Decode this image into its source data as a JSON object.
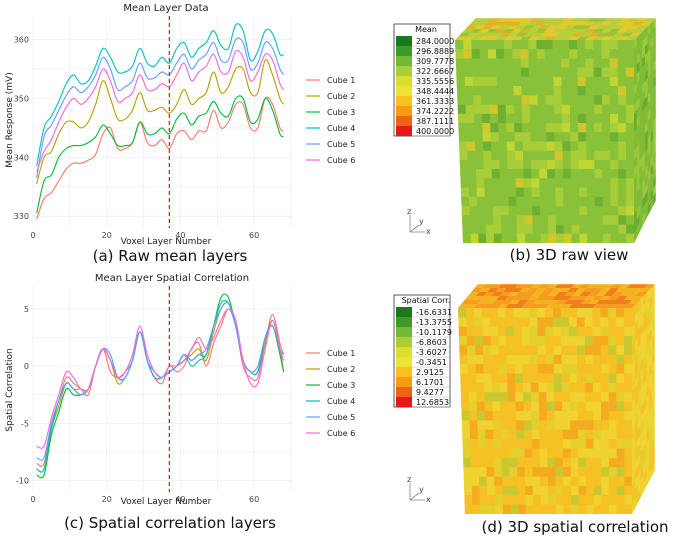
{
  "chart_data": [
    {
      "id": "raw",
      "type": "line",
      "title": "Mean Layer Data",
      "xlabel": "Voxel Layer Number",
      "ylabel": "Mean Response (mV)",
      "xlim": [
        0,
        70
      ],
      "ylim": [
        328,
        364
      ],
      "xticks": [
        "0",
        "20",
        "40",
        "60"
      ],
      "yticks": [
        "330",
        "340",
        "350",
        "360"
      ],
      "vline_x": 37,
      "caption": "(a) Raw mean layers",
      "x": [
        1,
        3,
        5,
        7,
        9,
        11,
        13,
        15,
        17,
        19,
        21,
        23,
        25,
        27,
        29,
        31,
        33,
        35,
        37,
        39,
        41,
        43,
        45,
        47,
        49,
        51,
        53,
        55,
        57,
        59,
        61,
        63,
        65,
        67,
        68
      ],
      "series": [
        {
          "name": "Cube 1",
          "color": "#F8766D",
          "values": [
            329.5,
            333,
            334,
            336,
            338,
            339,
            339,
            339.5,
            340.5,
            344,
            345,
            341.5,
            341.5,
            342.5,
            346,
            342.5,
            342,
            343,
            341.5,
            344,
            344.5,
            343,
            344.5,
            344.5,
            348,
            345,
            346,
            349,
            349,
            345,
            345,
            350,
            349,
            345,
            344.5
          ]
        },
        {
          "name": "Cube 2",
          "color": "#B79F00",
          "values": [
            335.5,
            340,
            341,
            344,
            346,
            346,
            345,
            346,
            349,
            353,
            350,
            346.5,
            346.5,
            348,
            351,
            348,
            348,
            348.5,
            347.5,
            349,
            351.5,
            349,
            350,
            351,
            354.5,
            351,
            352,
            355,
            355,
            351,
            351,
            356.5,
            354,
            350,
            349
          ]
        },
        {
          "name": "Cube 3",
          "color": "#00BA38",
          "values": [
            330.5,
            336,
            337,
            340,
            341.5,
            342,
            342,
            342.5,
            343.5,
            345.5,
            344,
            342,
            342,
            342.5,
            346,
            344,
            344,
            345,
            344,
            346.5,
            347.5,
            345.5,
            347,
            347.5,
            349.5,
            347.5,
            347,
            350,
            350,
            346,
            346.5,
            350,
            348,
            344,
            343.5
          ]
        },
        {
          "name": "Cube 4",
          "color": "#00BFC4",
          "values": [
            338.5,
            345,
            347,
            349.5,
            352.5,
            354,
            352.5,
            353,
            355.5,
            358.5,
            357,
            354.5,
            354.5,
            355.5,
            358.5,
            356,
            355.5,
            357,
            356,
            358.5,
            359.5,
            357,
            358.5,
            359.5,
            361.5,
            359,
            358.5,
            362.5,
            361.5,
            356.5,
            358,
            361.5,
            361,
            357.5,
            357.5
          ]
        },
        {
          "name": "Cube 5",
          "color": "#619CFF",
          "values": [
            336.5,
            343.5,
            345.5,
            348,
            350.5,
            352,
            351,
            352,
            354,
            357,
            355,
            351.5,
            352,
            353,
            356,
            353.5,
            353.5,
            354.5,
            354,
            356,
            357.5,
            355,
            356.5,
            357.5,
            359.5,
            356.5,
            356.5,
            360,
            359.5,
            355,
            356,
            359.5,
            358.5,
            355,
            354
          ]
        },
        {
          "name": "Cube 6",
          "color": "#F564E3",
          "values": [
            337.5,
            341,
            343,
            346,
            348.5,
            350,
            349,
            350,
            352,
            355,
            353,
            349.5,
            350,
            351,
            354,
            351.5,
            351.5,
            352.5,
            352,
            354,
            356,
            353,
            354.5,
            355.5,
            357.5,
            354.5,
            354.5,
            358,
            357,
            353,
            354.5,
            357.5,
            356.5,
            352.5,
            351.5
          ]
        }
      ]
    },
    {
      "id": "corr",
      "type": "line",
      "title": "Mean Layer Spatial Correlation",
      "xlabel": "Voxel Layer Number",
      "ylabel": "Spatial Correlation",
      "xlim": [
        0,
        70
      ],
      "ylim": [
        -11,
        7
      ],
      "xticks": [
        "0",
        "20",
        "40",
        "60"
      ],
      "yticks": [
        "-10",
        "-5",
        "0",
        "5"
      ],
      "vline_x": 37,
      "caption": "(c) Spatial correlation layers",
      "x": [
        1,
        3,
        5,
        7,
        9,
        11,
        13,
        15,
        17,
        19,
        21,
        23,
        25,
        27,
        29,
        31,
        33,
        35,
        37,
        39,
        41,
        43,
        45,
        47,
        49,
        51,
        53,
        55,
        57,
        59,
        61,
        63,
        65,
        67,
        68
      ],
      "series": [
        {
          "name": "Cube 1",
          "color": "#F8766D",
          "values": [
            -8.5,
            -8.5,
            -5,
            -3,
            -1,
            -1.5,
            -2,
            -2.5,
            0,
            1.5,
            -0.5,
            -1,
            -0.5,
            0.5,
            3,
            0.5,
            -1,
            -1.5,
            0,
            -0.5,
            0,
            1.5,
            2,
            0,
            2,
            3.5,
            5,
            3.5,
            0,
            -1,
            -1,
            2,
            4.5,
            2,
            1
          ]
        },
        {
          "name": "Cube 2",
          "color": "#B79F00",
          "values": [
            -9,
            -9,
            -5.5,
            -3.5,
            -1.5,
            -2,
            -2,
            -2,
            0,
            1.5,
            0.5,
            -1.5,
            -1,
            0.5,
            3,
            0.5,
            -1,
            -1,
            -0.5,
            0,
            0.5,
            1,
            1.5,
            0.5,
            3,
            5,
            5.5,
            3.5,
            0.5,
            -0.5,
            -0.5,
            2,
            4,
            1.5,
            -0.5
          ]
        },
        {
          "name": "Cube 3",
          "color": "#00BA38",
          "values": [
            -9.5,
            -9.5,
            -6,
            -4,
            -2,
            -2.5,
            -2.5,
            -2,
            0,
            1.5,
            0.5,
            -1,
            -1,
            0.5,
            3,
            0.5,
            -1,
            -1,
            -0.5,
            0,
            1,
            0.5,
            1,
            1,
            3.5,
            6,
            6,
            3.5,
            0.5,
            -0.5,
            -0.5,
            2.5,
            3.5,
            1,
            -0.5
          ]
        },
        {
          "name": "Cube 4",
          "color": "#00BFC4",
          "values": [
            -9,
            -9,
            -5.5,
            -3,
            -1.5,
            -2,
            -2.5,
            -2,
            0,
            1.5,
            0.5,
            -1,
            -1,
            0.5,
            3,
            0.5,
            -1,
            -1,
            -0.5,
            0,
            1,
            0,
            0.5,
            1,
            3.5,
            5.5,
            5.5,
            3.5,
            0.5,
            -0.5,
            -0.5,
            2.5,
            3.5,
            1.5,
            1
          ]
        },
        {
          "name": "Cube 5",
          "color": "#619CFF",
          "values": [
            -8,
            -8,
            -5,
            -3,
            -1.5,
            -2,
            -2.5,
            -2,
            0,
            1.5,
            1,
            -1,
            -1,
            0.5,
            3,
            0.5,
            -0.5,
            -1,
            -0.5,
            0,
            1,
            0.5,
            1,
            1.5,
            3.5,
            5,
            5.5,
            3.5,
            0.5,
            -0.5,
            0,
            2.5,
            3.5,
            1.5,
            1
          ]
        },
        {
          "name": "Cube 6",
          "color": "#F564E3",
          "values": [
            -7,
            -7,
            -4.5,
            -2.5,
            -0.5,
            -1,
            -2,
            -2,
            0,
            1.5,
            0.5,
            -1,
            -0.5,
            1,
            3.5,
            1,
            -0.5,
            -1,
            0,
            0,
            0.5,
            1.5,
            2.5,
            1.5,
            2.5,
            4,
            5,
            4,
            0.5,
            -1.5,
            -1.5,
            1.5,
            4,
            1.5,
            0.5
          ]
        }
      ]
    }
  ],
  "views": [
    {
      "id": "raw3d",
      "legend_title": "Mean",
      "legend_values": [
        "284.0000",
        "296.8889",
        "309.7778",
        "322.6667",
        "335.5556",
        "348.4444",
        "361.3333",
        "374.2222",
        "387.1111",
        "400.0000"
      ],
      "legend_colors": [
        "#1a7a1a",
        "#3f9a2a",
        "#72b935",
        "#a9cf35",
        "#d8df2c",
        "#eee335",
        "#f7c21d",
        "#f79b14",
        "#f06212",
        "#e61919"
      ],
      "axes": {
        "x": "x",
        "y": "y",
        "z": "z"
      },
      "caption": "(b) 3D raw view",
      "palette": {
        "base": "#9fc83a",
        "front": "#a5c93c",
        "top": "#c8d042",
        "side": "#8fbe3a"
      }
    },
    {
      "id": "corr3d",
      "legend_title": "Spatial Corr.",
      "legend_values": [
        "-16.6331",
        "-13.3755",
        "-10.1179",
        "-6.8603",
        "-3.6027",
        "-0.3451",
        "2.9125",
        "6.1701",
        "9.4277",
        "12.6853"
      ],
      "legend_colors": [
        "#1a7a1a",
        "#3f9a2a",
        "#72b935",
        "#a9cf35",
        "#d8df2c",
        "#eee335",
        "#f7c21d",
        "#f79b14",
        "#f06212",
        "#e61919"
      ],
      "axes": {
        "x": "x",
        "y": "y",
        "z": "z"
      },
      "caption": "(d) 3D spatial correlation",
      "palette": {
        "base": "#f2b52a",
        "front": "#f2bf2e",
        "top": "#f1a12a",
        "side": "#f0c431"
      }
    }
  ]
}
